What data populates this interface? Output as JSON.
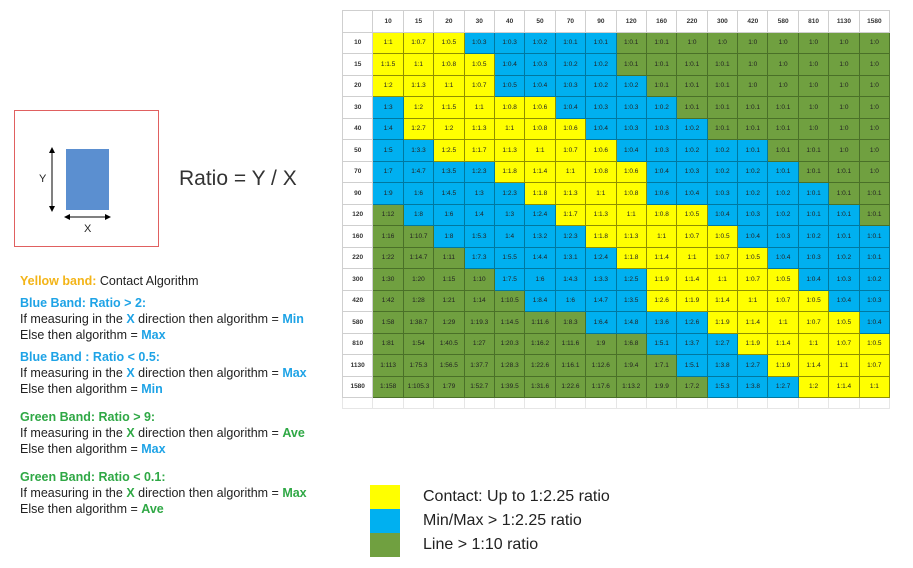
{
  "diagram": {
    "y_label": "Y",
    "x_label": "X",
    "formula": "Ratio = Y / X"
  },
  "rules": {
    "yellow": {
      "title": "Yellow band:",
      "text": " Contact Algorithm"
    },
    "blue_gt": {
      "title": "Blue Band: Ratio > 2:",
      "line1_pre": "If measuring in the ",
      "line1_axis": "X",
      "line1_mid": " direction then algorithm = ",
      "line1_val": "Min",
      "line2_pre": "Else then algorithm = ",
      "line2_val": "Max"
    },
    "blue_lt": {
      "title": "Blue Band : Ratio < 0.5:",
      "line1_pre": "If measuring in the ",
      "line1_axis": "X",
      "line1_mid": " direction then algorithm = ",
      "line1_val": "Max",
      "line2_pre": "Else then algorithm = ",
      "line2_val": "Min"
    },
    "green_gt": {
      "title": "Green Band: Ratio > 9:",
      "line1_pre": "If measuring in the ",
      "line1_axis": "X",
      "line1_mid": " direction then algorithm = ",
      "line1_val": "Ave",
      "line2_pre": "Else then algorithm = ",
      "line2_val": "Max"
    },
    "green_lt": {
      "title": "Green Band: Ratio < 0.1:",
      "line1_pre": "If measuring in the ",
      "line1_axis": "X",
      "line1_mid": " direction then algorithm = ",
      "line1_val": "Max",
      "line2_pre": "Else then algorithm = ",
      "line2_val": "Ave"
    }
  },
  "grid": {
    "col_headers": [
      "10",
      "15",
      "20",
      "30",
      "40",
      "50",
      "70",
      "90",
      "120",
      "160",
      "220",
      "300",
      "420",
      "580",
      "810",
      "1130",
      "1580"
    ],
    "row_headers": [
      "10",
      "15",
      "20",
      "30",
      "40",
      "50",
      "70",
      "90",
      "120",
      "160",
      "220",
      "300",
      "420",
      "580",
      "810",
      "1130",
      "1580"
    ],
    "colors": {
      "y": "#ffff00",
      "b": "#00b0f0",
      "g": "#70a040"
    },
    "rows": [
      [
        "1:1",
        "1:0.7",
        "1:0.5",
        "1:0.3",
        "1:0.3",
        "1:0.2",
        "1:0.1",
        "1:0.1",
        "1:0.1",
        "1:0.1",
        "1:0",
        "1:0",
        "1:0",
        "1:0",
        "1:0",
        "1:0",
        "1:0"
      ],
      [
        "1:1.5",
        "1:1",
        "1:0.8",
        "1:0.5",
        "1:0.4",
        "1:0.3",
        "1:0.2",
        "1:0.2",
        "1:0.1",
        "1:0.1",
        "1:0.1",
        "1:0.1",
        "1:0",
        "1:0",
        "1:0",
        "1:0",
        "1:0"
      ],
      [
        "1:2",
        "1:1.3",
        "1:1",
        "1:0.7",
        "1:0.5",
        "1:0.4",
        "1:0.3",
        "1:0.2",
        "1:0.2",
        "1:0.1",
        "1:0.1",
        "1:0.1",
        "1:0",
        "1:0",
        "1:0",
        "1:0",
        "1:0"
      ],
      [
        "1:3",
        "1:2",
        "1:1.5",
        "1:1",
        "1:0.8",
        "1:0.6",
        "1:0.4",
        "1:0.3",
        "1:0.3",
        "1:0.2",
        "1:0.1",
        "1:0.1",
        "1:0.1",
        "1:0.1",
        "1:0",
        "1:0",
        "1:0"
      ],
      [
        "1:4",
        "1:2.7",
        "1:2",
        "1:1.3",
        "1:1",
        "1:0.8",
        "1:0.6",
        "1:0.4",
        "1:0.3",
        "1:0.3",
        "1:0.2",
        "1:0.1",
        "1:0.1",
        "1:0.1",
        "1:0",
        "1:0",
        "1:0"
      ],
      [
        "1:5",
        "1:3.3",
        "1:2.5",
        "1:1.7",
        "1:1.3",
        "1:1",
        "1:0.7",
        "1:0.6",
        "1:0.4",
        "1:0.3",
        "1:0.2",
        "1:0.2",
        "1:0.1",
        "1:0.1",
        "1:0.1",
        "1:0",
        "1:0"
      ],
      [
        "1:7",
        "1:4.7",
        "1:3.5",
        "1:2.3",
        "1:1.8",
        "1:1.4",
        "1:1",
        "1:0.8",
        "1:0.6",
        "1:0.4",
        "1:0.3",
        "1:0.2",
        "1:0.2",
        "1:0.1",
        "1:0.1",
        "1:0.1",
        "1:0"
      ],
      [
        "1:9",
        "1:6",
        "1:4.5",
        "1:3",
        "1:2.3",
        "1:1.8",
        "1:1.3",
        "1:1",
        "1:0.8",
        "1:0.6",
        "1:0.4",
        "1:0.3",
        "1:0.2",
        "1:0.2",
        "1:0.1",
        "1:0.1",
        "1:0.1"
      ],
      [
        "1:12",
        "1:8",
        "1:6",
        "1:4",
        "1:3",
        "1:2.4",
        "1:1.7",
        "1:1.3",
        "1:1",
        "1:0.8",
        "1:0.5",
        "1:0.4",
        "1:0.3",
        "1:0.2",
        "1:0.1",
        "1:0.1",
        "1:0.1"
      ],
      [
        "1:16",
        "1:10.7",
        "1:8",
        "1:5.3",
        "1:4",
        "1:3.2",
        "1:2.3",
        "1:1.8",
        "1:1.3",
        "1:1",
        "1:0.7",
        "1:0.5",
        "1:0.4",
        "1:0.3",
        "1:0.2",
        "1:0.1",
        "1:0.1"
      ],
      [
        "1:22",
        "1:14.7",
        "1:11",
        "1:7.3",
        "1:5.5",
        "1:4.4",
        "1:3.1",
        "1:2.4",
        "1:1.8",
        "1:1.4",
        "1:1",
        "1:0.7",
        "1:0.5",
        "1:0.4",
        "1:0.3",
        "1:0.2",
        "1:0.1"
      ],
      [
        "1:30",
        "1:20",
        "1:15",
        "1:10",
        "1:7.5",
        "1:6",
        "1:4.3",
        "1:3.3",
        "1:2.5",
        "1:1.9",
        "1:1.4",
        "1:1",
        "1:0.7",
        "1:0.5",
        "1:0.4",
        "1:0.3",
        "1:0.2"
      ],
      [
        "1:42",
        "1:28",
        "1:21",
        "1:14",
        "1:10.5",
        "1:8.4",
        "1:6",
        "1:4.7",
        "1:3.5",
        "1:2.6",
        "1:1.9",
        "1:1.4",
        "1:1",
        "1:0.7",
        "1:0.5",
        "1:0.4",
        "1:0.3"
      ],
      [
        "1:58",
        "1:38.7",
        "1:29",
        "1:19.3",
        "1:14.5",
        "1:11.6",
        "1:8.3",
        "1:6.4",
        "1:4.8",
        "1:3.6",
        "1:2.6",
        "1:1.9",
        "1:1.4",
        "1:1",
        "1:0.7",
        "1:0.5",
        "1:0.4"
      ],
      [
        "1:81",
        "1:54",
        "1:40.5",
        "1:27",
        "1:20.3",
        "1:16.2",
        "1:11.6",
        "1:9",
        "1:6.8",
        "1:5.1",
        "1:3.7",
        "1:2.7",
        "1:1.9",
        "1:1.4",
        "1:1",
        "1:0.7",
        "1:0.5"
      ],
      [
        "1:113",
        "1:75.3",
        "1:56.5",
        "1:37.7",
        "1:28.3",
        "1:22.6",
        "1:16.1",
        "1:12.6",
        "1:9.4",
        "1:7.1",
        "1:5.1",
        "1:3.8",
        "1:2.7",
        "1:1.9",
        "1:1.4",
        "1:1",
        "1:0.7"
      ],
      [
        "1:158",
        "1:105.3",
        "1:79",
        "1:52.7",
        "1:39.5",
        "1:31.6",
        "1:22.6",
        "1:17.6",
        "1:13.2",
        "1:9.9",
        "1:7.2",
        "1:5.3",
        "1:3.8",
        "1:2.7",
        "1:2",
        "1:1.4",
        "1:1"
      ]
    ],
    "band_map": [
      "yyybbbbbggggggggg",
      "yyyybbbbggggggggg",
      "yyyybbbbbgggggggg",
      "byyyyybbbbggggggg",
      "byyyyyybbbbgggggg",
      "bbyyyyyybbbbbgggg",
      "bbbbyyyyybbbbbggg",
      "bbbbbyyyybbbbbbgg",
      "gbbbbbyyyyybbbbbg",
      "ggbbbbbyyyyybbbbb",
      "gggbbbbbyyyyybbbb",
      "ggggbbbbbyyyyybbb",
      "gggggbbbbyyyyyybb",
      "gggggggbbbbyyyyyb",
      "gggggggggbbbyyyyy",
      "ggggggggggbbbyyyy",
      "gggggggggggbbbyyy"
    ]
  },
  "key": [
    {
      "color": "#ffff00",
      "label": "Contact: Up to 1:2.25 ratio"
    },
    {
      "color": "#00b0f0",
      "label": "Min/Max > 1:2.25 ratio"
    },
    {
      "color": "#70a040",
      "label": "Line > 1:10 ratio"
    }
  ]
}
